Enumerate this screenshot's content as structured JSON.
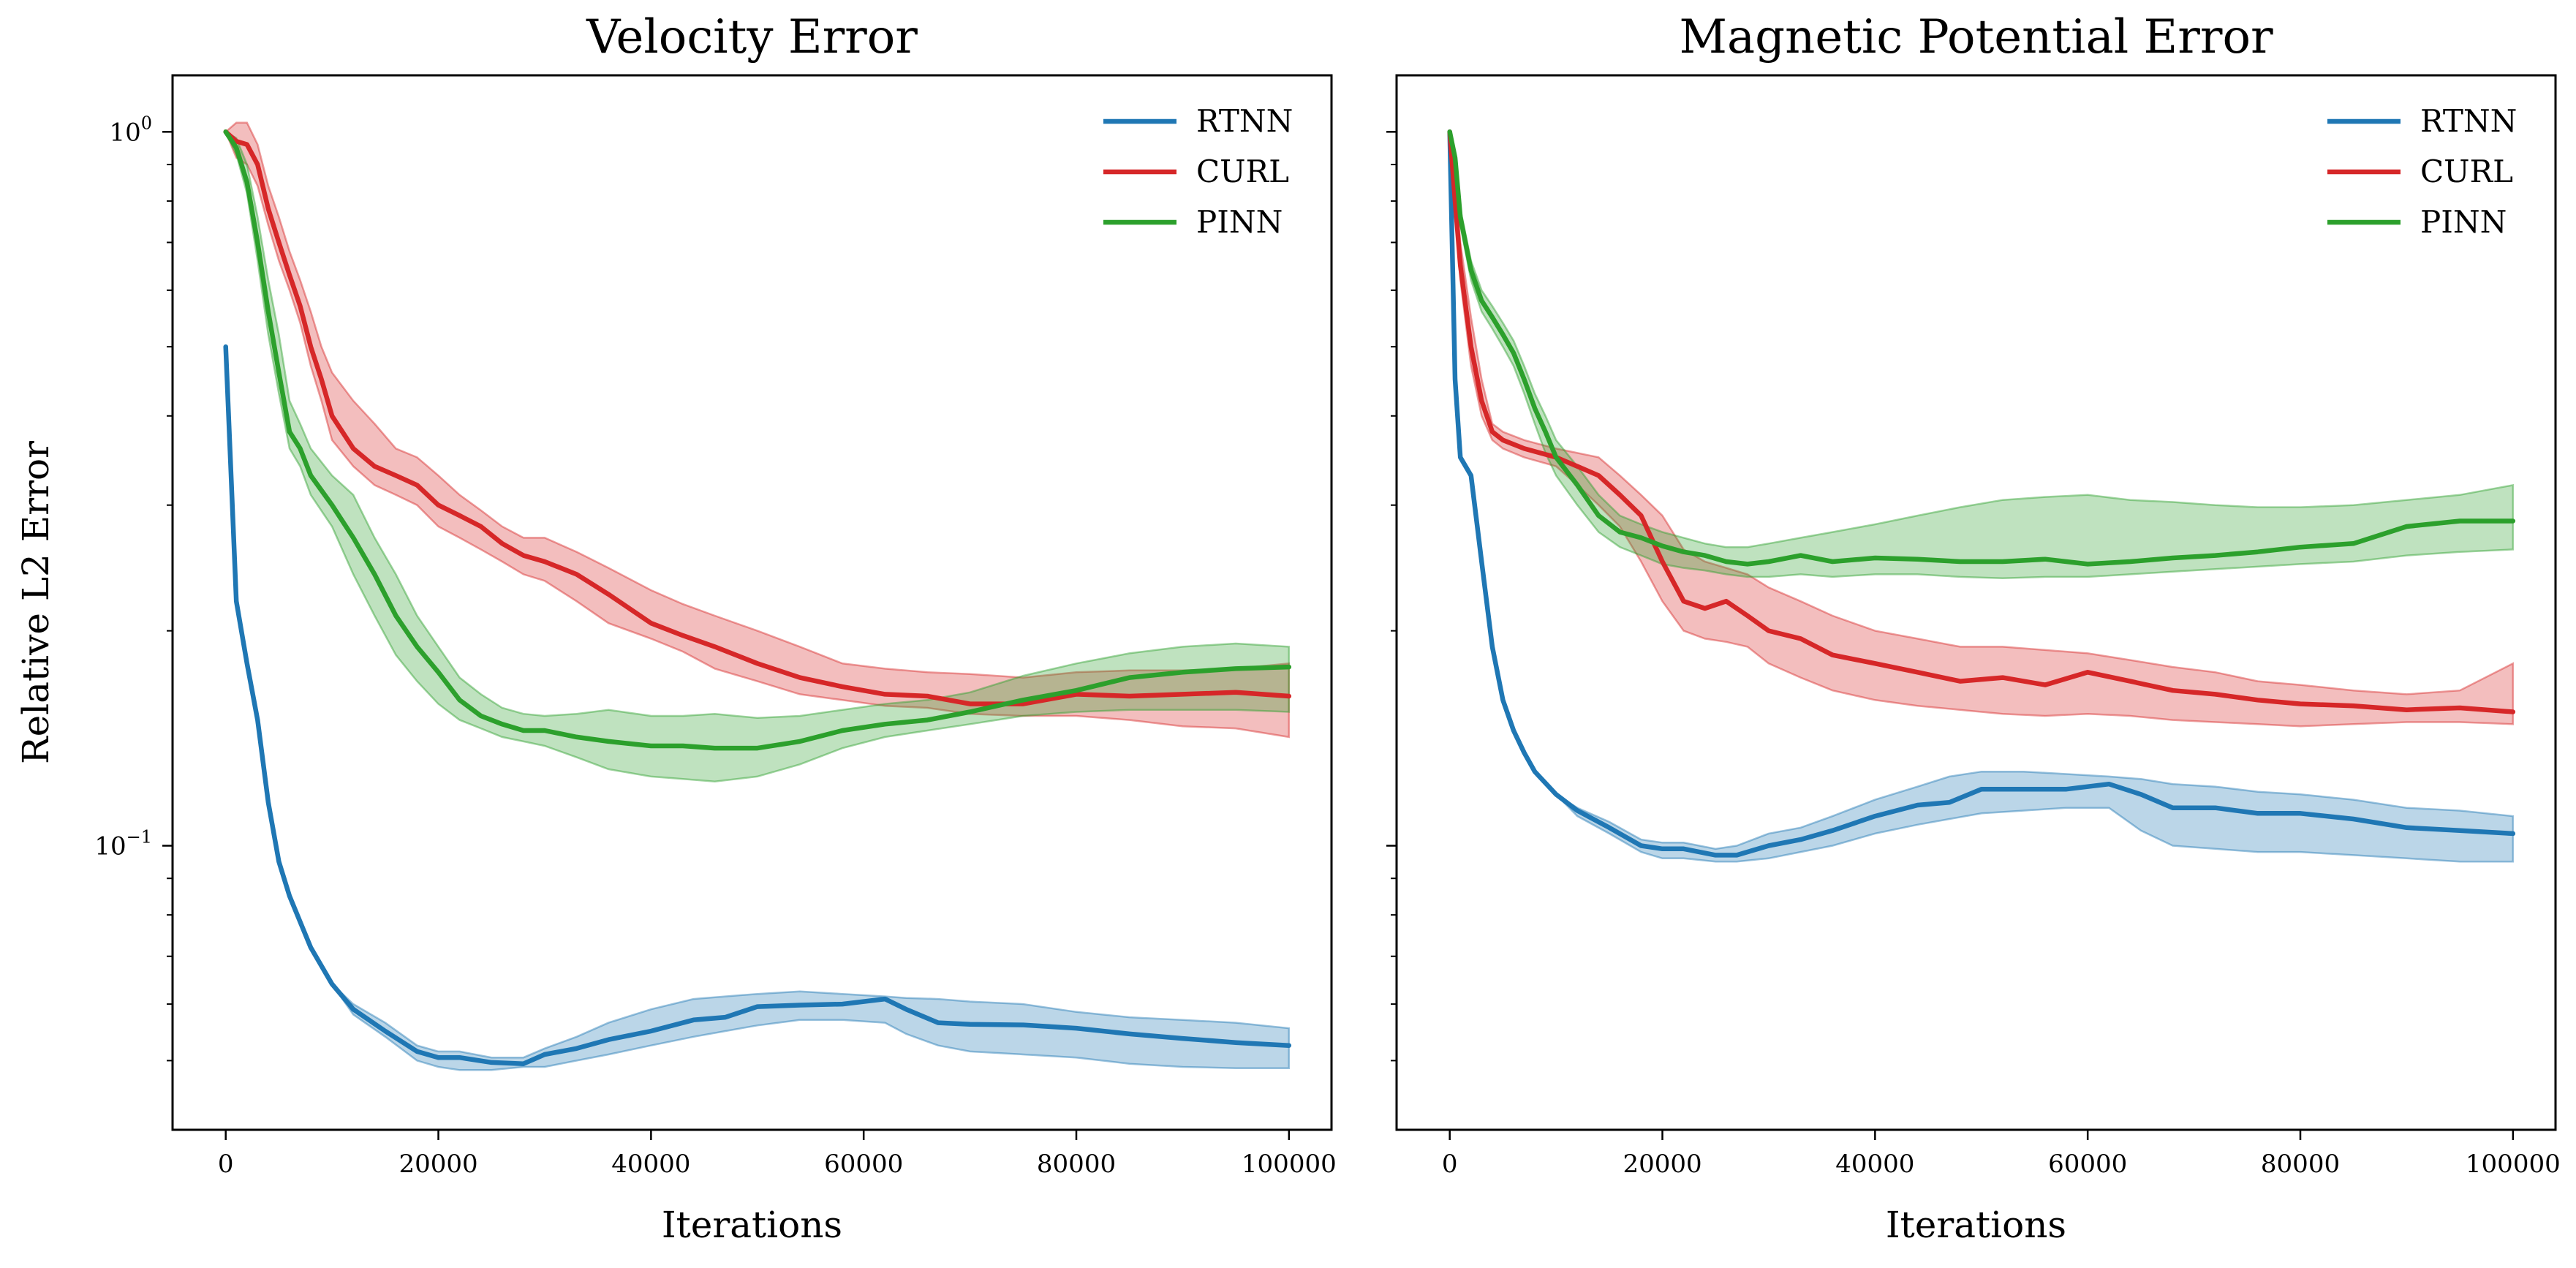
{
  "chart_data": [
    {
      "type": "line",
      "title": "Velocity Error",
      "xlabel": "Iterations",
      "ylabel": "Relative L2 Error",
      "yscale": "log",
      "xlim": [
        -5000,
        104000
      ],
      "ylim": [
        0.04,
        1.2
      ],
      "x_ticks": [
        0,
        20000,
        40000,
        60000,
        80000,
        100000
      ],
      "x_tick_labels": [
        "0",
        "20000",
        "40000",
        "60000",
        "80000",
        "100000"
      ],
      "y_major_ticks": [
        {
          "value": 1.0,
          "base": "10",
          "exp": "0"
        },
        {
          "value": 0.1,
          "base": "10",
          "exp": "−1"
        }
      ],
      "y_minor_ticks": [
        0.05,
        0.06,
        0.07,
        0.08,
        0.09,
        0.2,
        0.3,
        0.4,
        0.5,
        0.6,
        0.7,
        0.8,
        0.9
      ],
      "legend_position": "top-right",
      "series": [
        {
          "name": "RTNN",
          "color": "#1f77b4",
          "band_color": "#1f77b4",
          "x": [
            0,
            1000,
            2000,
            3000,
            4000,
            5000,
            6000,
            8000,
            10000,
            12000,
            15000,
            18000,
            20000,
            22000,
            25000,
            28000,
            30000,
            33000,
            36000,
            40000,
            44000,
            47000,
            50000,
            54000,
            58000,
            62000,
            64000,
            67000,
            70000,
            75000,
            80000,
            85000,
            90000,
            95000,
            100000
          ],
          "values": [
            0.5,
            0.22,
            0.18,
            0.15,
            0.115,
            0.095,
            0.085,
            0.072,
            0.064,
            0.059,
            0.055,
            0.0515,
            0.0505,
            0.0505,
            0.0497,
            0.0495,
            0.051,
            0.052,
            0.0535,
            0.055,
            0.057,
            0.0575,
            0.0595,
            0.0598,
            0.06,
            0.061,
            0.059,
            0.0565,
            0.0562,
            0.0561,
            0.0555,
            0.0545,
            0.0537,
            0.053,
            0.0525
          ],
          "lower": [
            0.5,
            0.22,
            0.18,
            0.15,
            0.115,
            0.095,
            0.085,
            0.072,
            0.064,
            0.058,
            0.054,
            0.05,
            0.049,
            0.0485,
            0.0485,
            0.049,
            0.049,
            0.05,
            0.051,
            0.0525,
            0.054,
            0.055,
            0.056,
            0.057,
            0.057,
            0.0565,
            0.0545,
            0.0525,
            0.0515,
            0.051,
            0.0505,
            0.0495,
            0.049,
            0.0488,
            0.0488
          ],
          "upper": [
            0.5,
            0.22,
            0.18,
            0.15,
            0.115,
            0.095,
            0.085,
            0.072,
            0.064,
            0.06,
            0.0565,
            0.0525,
            0.0515,
            0.0515,
            0.0505,
            0.0505,
            0.052,
            0.054,
            0.0565,
            0.059,
            0.061,
            0.0615,
            0.062,
            0.0625,
            0.062,
            0.0615,
            0.0612,
            0.061,
            0.0605,
            0.06,
            0.0585,
            0.0575,
            0.057,
            0.0565,
            0.0555
          ]
        },
        {
          "name": "CURL",
          "color": "#d62728",
          "band_color": "#d62728",
          "x": [
            0,
            1000,
            2000,
            3000,
            4000,
            5000,
            6000,
            7000,
            8000,
            9000,
            10000,
            12000,
            14000,
            16000,
            18000,
            20000,
            22000,
            24000,
            26000,
            28000,
            30000,
            33000,
            36000,
            40000,
            43000,
            46000,
            50000,
            54000,
            58000,
            62000,
            66000,
            70000,
            75000,
            80000,
            85000,
            90000,
            95000,
            100000
          ],
          "values": [
            1.0,
            0.97,
            0.96,
            0.9,
            0.78,
            0.7,
            0.63,
            0.57,
            0.5,
            0.45,
            0.4,
            0.36,
            0.34,
            0.33,
            0.32,
            0.3,
            0.29,
            0.28,
            0.265,
            0.255,
            0.25,
            0.24,
            0.225,
            0.205,
            0.197,
            0.19,
            0.18,
            0.172,
            0.167,
            0.163,
            0.162,
            0.158,
            0.158,
            0.163,
            0.162,
            0.163,
            0.164,
            0.162
          ],
          "lower": [
            1.0,
            0.92,
            0.9,
            0.84,
            0.74,
            0.66,
            0.6,
            0.54,
            0.47,
            0.42,
            0.37,
            0.34,
            0.32,
            0.31,
            0.3,
            0.28,
            0.27,
            0.26,
            0.25,
            0.24,
            0.235,
            0.22,
            0.205,
            0.195,
            0.187,
            0.177,
            0.17,
            0.163,
            0.16,
            0.157,
            0.156,
            0.153,
            0.152,
            0.152,
            0.15,
            0.147,
            0.146,
            0.142
          ],
          "upper": [
            1.0,
            1.03,
            1.03,
            0.96,
            0.84,
            0.76,
            0.68,
            0.62,
            0.56,
            0.5,
            0.46,
            0.42,
            0.39,
            0.36,
            0.35,
            0.33,
            0.31,
            0.295,
            0.28,
            0.27,
            0.27,
            0.258,
            0.245,
            0.228,
            0.218,
            0.21,
            0.2,
            0.19,
            0.18,
            0.177,
            0.175,
            0.174,
            0.172,
            0.175,
            0.176,
            0.176,
            0.177,
            0.18
          ]
        },
        {
          "name": "PINN",
          "color": "#2ca02c",
          "band_color": "#2ca02c",
          "x": [
            0,
            1000,
            2000,
            3000,
            4000,
            5000,
            6000,
            7000,
            8000,
            10000,
            12000,
            14000,
            16000,
            18000,
            20000,
            22000,
            24000,
            26000,
            28000,
            30000,
            33000,
            36000,
            40000,
            43000,
            46000,
            50000,
            54000,
            58000,
            62000,
            66000,
            70000,
            75000,
            80000,
            85000,
            90000,
            95000,
            100000
          ],
          "values": [
            1.0,
            0.95,
            0.85,
            0.7,
            0.56,
            0.46,
            0.38,
            0.36,
            0.33,
            0.3,
            0.27,
            0.24,
            0.21,
            0.19,
            0.175,
            0.16,
            0.152,
            0.148,
            0.145,
            0.145,
            0.142,
            0.14,
            0.138,
            0.138,
            0.137,
            0.137,
            0.14,
            0.145,
            0.148,
            0.15,
            0.154,
            0.16,
            0.165,
            0.172,
            0.175,
            0.177,
            0.178
          ],
          "lower": [
            1.0,
            0.93,
            0.82,
            0.66,
            0.52,
            0.43,
            0.36,
            0.34,
            0.31,
            0.28,
            0.24,
            0.21,
            0.185,
            0.17,
            0.158,
            0.15,
            0.146,
            0.142,
            0.14,
            0.138,
            0.133,
            0.128,
            0.125,
            0.124,
            0.123,
            0.125,
            0.13,
            0.137,
            0.142,
            0.145,
            0.148,
            0.152,
            0.154,
            0.155,
            0.155,
            0.155,
            0.154
          ],
          "upper": [
            1.0,
            0.98,
            0.9,
            0.76,
            0.62,
            0.52,
            0.42,
            0.39,
            0.36,
            0.33,
            0.31,
            0.27,
            0.24,
            0.21,
            0.19,
            0.172,
            0.163,
            0.156,
            0.153,
            0.152,
            0.153,
            0.155,
            0.152,
            0.152,
            0.153,
            0.151,
            0.152,
            0.155,
            0.158,
            0.16,
            0.164,
            0.173,
            0.18,
            0.186,
            0.19,
            0.192,
            0.19
          ]
        }
      ]
    },
    {
      "type": "line",
      "title": "Magnetic Potential Error",
      "xlabel": "Iterations",
      "ylabel": "",
      "yscale": "log",
      "xlim": [
        -5000,
        104000
      ],
      "ylim": [
        0.04,
        1.2
      ],
      "x_ticks": [
        0,
        20000,
        40000,
        60000,
        80000,
        100000
      ],
      "x_tick_labels": [
        "0",
        "20000",
        "40000",
        "60000",
        "80000",
        "100000"
      ],
      "y_major_ticks": [
        {
          "value": 1.0,
          "base": "",
          "exp": ""
        },
        {
          "value": 0.1,
          "base": "",
          "exp": ""
        }
      ],
      "y_minor_ticks": [
        0.05,
        0.06,
        0.07,
        0.08,
        0.09,
        0.2,
        0.3,
        0.4,
        0.5,
        0.6,
        0.7,
        0.8,
        0.9
      ],
      "legend_position": "top-right",
      "series": [
        {
          "name": "RTNN",
          "color": "#1f77b4",
          "band_color": "#1f77b4",
          "x": [
            0,
            500,
            1000,
            2000,
            3000,
            4000,
            5000,
            6000,
            7000,
            8000,
            10000,
            12000,
            15000,
            18000,
            20000,
            22000,
            25000,
            27000,
            30000,
            33000,
            36000,
            40000,
            44000,
            47000,
            50000,
            54000,
            58000,
            62000,
            65000,
            68000,
            72000,
            76000,
            80000,
            85000,
            90000,
            95000,
            100000
          ],
          "values": [
            1.0,
            0.45,
            0.35,
            0.33,
            0.25,
            0.19,
            0.16,
            0.145,
            0.135,
            0.127,
            0.118,
            0.112,
            0.106,
            0.1,
            0.099,
            0.099,
            0.097,
            0.097,
            0.1,
            0.102,
            0.105,
            0.11,
            0.114,
            0.115,
            0.12,
            0.12,
            0.12,
            0.122,
            0.118,
            0.113,
            0.113,
            0.111,
            0.111,
            0.109,
            0.106,
            0.105,
            0.104
          ],
          "lower": [
            1.0,
            0.45,
            0.35,
            0.33,
            0.25,
            0.19,
            0.16,
            0.145,
            0.135,
            0.127,
            0.118,
            0.11,
            0.104,
            0.098,
            0.096,
            0.096,
            0.095,
            0.095,
            0.096,
            0.098,
            0.1,
            0.104,
            0.107,
            0.109,
            0.111,
            0.112,
            0.113,
            0.113,
            0.105,
            0.1,
            0.099,
            0.098,
            0.098,
            0.097,
            0.096,
            0.095,
            0.095
          ],
          "upper": [
            1.0,
            0.45,
            0.35,
            0.33,
            0.25,
            0.19,
            0.16,
            0.145,
            0.135,
            0.127,
            0.118,
            0.113,
            0.108,
            0.102,
            0.101,
            0.101,
            0.099,
            0.1,
            0.104,
            0.106,
            0.11,
            0.116,
            0.121,
            0.125,
            0.127,
            0.127,
            0.126,
            0.125,
            0.124,
            0.122,
            0.121,
            0.119,
            0.118,
            0.116,
            0.113,
            0.112,
            0.11
          ]
        },
        {
          "name": "CURL",
          "color": "#d62728",
          "band_color": "#d62728",
          "x": [
            0,
            500,
            1000,
            2000,
            3000,
            4000,
            5000,
            7000,
            10000,
            12000,
            14000,
            16000,
            18000,
            20000,
            22000,
            24000,
            26000,
            28000,
            30000,
            33000,
            36000,
            40000,
            44000,
            48000,
            52000,
            56000,
            60000,
            64000,
            68000,
            72000,
            76000,
            80000,
            85000,
            90000,
            95000,
            100000
          ],
          "values": [
            1.0,
            0.8,
            0.65,
            0.5,
            0.42,
            0.38,
            0.37,
            0.36,
            0.35,
            0.34,
            0.33,
            0.31,
            0.29,
            0.25,
            0.22,
            0.215,
            0.22,
            0.21,
            0.2,
            0.195,
            0.185,
            0.18,
            0.175,
            0.17,
            0.172,
            0.168,
            0.175,
            0.17,
            0.165,
            0.163,
            0.16,
            0.158,
            0.157,
            0.155,
            0.156,
            0.154
          ],
          "lower": [
            1.0,
            0.78,
            0.62,
            0.47,
            0.4,
            0.37,
            0.36,
            0.35,
            0.34,
            0.32,
            0.3,
            0.28,
            0.25,
            0.22,
            0.2,
            0.195,
            0.193,
            0.19,
            0.18,
            0.172,
            0.165,
            0.16,
            0.157,
            0.155,
            0.153,
            0.152,
            0.153,
            0.152,
            0.15,
            0.149,
            0.148,
            0.147,
            0.148,
            0.149,
            0.149,
            0.148
          ],
          "upper": [
            1.0,
            0.85,
            0.7,
            0.55,
            0.45,
            0.39,
            0.38,
            0.37,
            0.36,
            0.355,
            0.35,
            0.33,
            0.31,
            0.29,
            0.26,
            0.25,
            0.245,
            0.24,
            0.23,
            0.22,
            0.21,
            0.2,
            0.195,
            0.19,
            0.19,
            0.188,
            0.186,
            0.182,
            0.178,
            0.175,
            0.17,
            0.168,
            0.165,
            0.163,
            0.165,
            0.18
          ]
        },
        {
          "name": "PINN",
          "color": "#2ca02c",
          "band_color": "#2ca02c",
          "x": [
            0,
            500,
            1000,
            2000,
            3000,
            4000,
            5000,
            6000,
            7000,
            8000,
            9000,
            10000,
            12000,
            14000,
            16000,
            18000,
            20000,
            22000,
            24000,
            26000,
            28000,
            30000,
            33000,
            36000,
            40000,
            44000,
            48000,
            52000,
            56000,
            60000,
            64000,
            68000,
            72000,
            76000,
            80000,
            85000,
            90000,
            95000,
            100000
          ],
          "values": [
            1.0,
            0.92,
            0.76,
            0.64,
            0.58,
            0.55,
            0.52,
            0.49,
            0.45,
            0.41,
            0.38,
            0.35,
            0.32,
            0.29,
            0.275,
            0.27,
            0.263,
            0.258,
            0.255,
            0.25,
            0.248,
            0.25,
            0.255,
            0.25,
            0.253,
            0.252,
            0.25,
            0.25,
            0.252,
            0.248,
            0.25,
            0.253,
            0.255,
            0.258,
            0.262,
            0.265,
            0.28,
            0.285,
            0.285
          ],
          "lower": [
            1.0,
            0.9,
            0.74,
            0.62,
            0.56,
            0.53,
            0.5,
            0.47,
            0.43,
            0.39,
            0.355,
            0.33,
            0.3,
            0.275,
            0.262,
            0.255,
            0.248,
            0.245,
            0.243,
            0.24,
            0.238,
            0.238,
            0.24,
            0.238,
            0.24,
            0.24,
            0.238,
            0.237,
            0.238,
            0.238,
            0.24,
            0.242,
            0.244,
            0.246,
            0.248,
            0.25,
            0.255,
            0.258,
            0.26
          ],
          "upper": [
            1.0,
            0.94,
            0.78,
            0.66,
            0.6,
            0.57,
            0.54,
            0.51,
            0.47,
            0.43,
            0.4,
            0.37,
            0.34,
            0.31,
            0.29,
            0.282,
            0.275,
            0.27,
            0.265,
            0.262,
            0.262,
            0.265,
            0.27,
            0.275,
            0.282,
            0.29,
            0.298,
            0.305,
            0.308,
            0.31,
            0.305,
            0.303,
            0.3,
            0.298,
            0.298,
            0.3,
            0.305,
            0.31,
            0.32
          ]
        }
      ]
    }
  ]
}
